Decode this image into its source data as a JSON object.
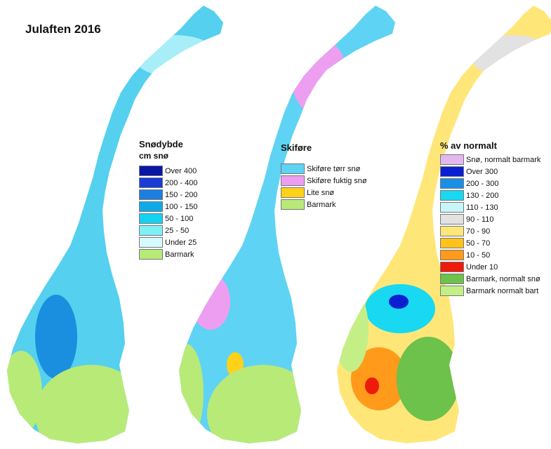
{
  "title": "Julaften 2016",
  "maps": [
    {
      "id": "snodybde",
      "legend": {
        "title": "Snødybde",
        "subtitle": "cm snø",
        "items": [
          {
            "label": "Over 400",
            "color": "#0a16a6"
          },
          {
            "label": "200 - 400",
            "color": "#1a3bd6"
          },
          {
            "label": "150 - 200",
            "color": "#1b7fe0"
          },
          {
            "label": "100 - 150",
            "color": "#10a9e8"
          },
          {
            "label": "50 - 100",
            "color": "#14d2f2"
          },
          {
            "label": "25 - 50",
            "color": "#7ff0f6"
          },
          {
            "label": "Under 25",
            "color": "#d6fbfd"
          },
          {
            "label": "Barmark",
            "color": "#b8ea78"
          }
        ]
      },
      "region_colors": {
        "base": "#55d0ee",
        "south": "#b8ea78",
        "coast": "#b8ea78",
        "deep": "#1a8fe0",
        "light": "#a8eef8"
      }
    },
    {
      "id": "skifore",
      "legend": {
        "title": "Skiføre",
        "items": [
          {
            "label": "Skiføre tørr snø",
            "color": "#5fd3f3"
          },
          {
            "label": "Skiføre fuktig snø",
            "color": "#ee9ef0"
          },
          {
            "label": "Lite snø",
            "color": "#ffd21a"
          },
          {
            "label": "Barmark",
            "color": "#b8ea78"
          }
        ]
      },
      "region_colors": {
        "base": "#5fd3f3",
        "south": "#b8ea78",
        "coast": "#b8ea78",
        "wet": "#ee9ef0",
        "little": "#ffd21a"
      }
    },
    {
      "id": "prosent-av-normalt",
      "legend": {
        "title": "% av normalt",
        "items": [
          {
            "label": "Snø, normalt barmark",
            "color": "#e3b8f0"
          },
          {
            "label": "Over 300",
            "color": "#0a20d0"
          },
          {
            "label": "200 - 300",
            "color": "#1a8fe6"
          },
          {
            "label": "130 - 200",
            "color": "#18d8f2"
          },
          {
            "label": "110 - 130",
            "color": "#c8f6f8"
          },
          {
            "label": "90 - 110",
            "color": "#e2e2e2"
          },
          {
            "label": "70 - 90",
            "color": "#ffe678"
          },
          {
            "label": "50 - 70",
            "color": "#ffc21a"
          },
          {
            "label": "10 - 50",
            "color": "#ff9a1a"
          },
          {
            "label": "Under 10",
            "color": "#ee1a0a"
          },
          {
            "label": "Barmark, normalt snø",
            "color": "#6cc24a"
          },
          {
            "label": "Barmark normalt bart",
            "color": "#c4ef86"
          }
        ]
      },
      "region_colors": {
        "base": "#ffe678",
        "south": "#6cc24a",
        "coast": "#c4ef86",
        "orange": "#ff9a1a",
        "blue": "#18d8f2",
        "deep": "#0a20d0",
        "grey": "#e2e2e2",
        "red": "#ee1a0a"
      }
    }
  ]
}
